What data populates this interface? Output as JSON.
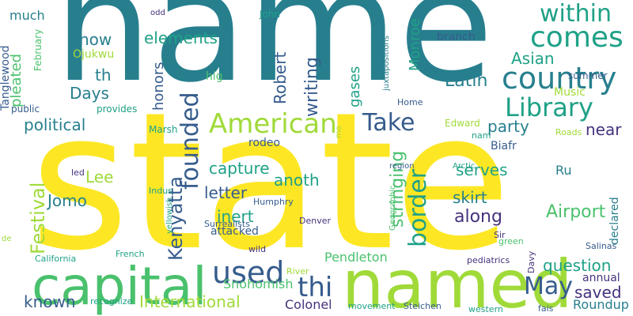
{
  "palette": {
    "background": "#ffffff",
    "yellow": "#fde725",
    "lime": "#a0da39",
    "green": "#4ac16d",
    "teal": "#1fa187",
    "cyan": "#277f8e",
    "blue": "#365c8d",
    "indigo": "#46327e",
    "purple": "#440154"
  },
  "words": [
    {
      "text": "name",
      "color": "cyan"
    },
    {
      "text": "state",
      "color": "yellow"
    },
    {
      "text": "named",
      "color": "lime"
    },
    {
      "text": "capital",
      "color": "green"
    },
    {
      "text": "country",
      "color": "cyan"
    },
    {
      "text": "comes",
      "color": "teal"
    },
    {
      "text": "within",
      "color": "teal"
    },
    {
      "text": "Library",
      "color": "teal"
    },
    {
      "text": "American",
      "color": "lime"
    },
    {
      "text": "Take",
      "color": "blue"
    },
    {
      "text": "founded",
      "color": "blue"
    },
    {
      "text": "border",
      "color": "teal"
    },
    {
      "text": "used",
      "color": "blue"
    },
    {
      "text": "thi",
      "color": "blue"
    },
    {
      "text": "May",
      "color": "blue"
    },
    {
      "text": "Festival",
      "color": "lime"
    },
    {
      "text": "Kenyatta",
      "color": "blue"
    },
    {
      "text": "Airport",
      "color": "green"
    },
    {
      "text": "stringing",
      "color": "green"
    },
    {
      "text": "Robert",
      "color": "blue"
    },
    {
      "text": "writing",
      "color": "blue"
    },
    {
      "text": "Latin",
      "color": "cyan"
    },
    {
      "text": "Asian",
      "color": "teal"
    },
    {
      "text": "Monroe",
      "color": "teal"
    },
    {
      "text": "gases",
      "color": "teal"
    },
    {
      "text": "elements",
      "color": "teal"
    },
    {
      "text": "honors",
      "color": "blue"
    },
    {
      "text": "now",
      "color": "cyan"
    },
    {
      "text": "th",
      "color": "cyan"
    },
    {
      "text": "Days",
      "color": "cyan"
    },
    {
      "text": "political",
      "color": "cyan"
    },
    {
      "text": "party",
      "color": "cyan"
    },
    {
      "text": "near",
      "color": "indigo"
    },
    {
      "text": "capture",
      "color": "teal"
    },
    {
      "text": "anoth",
      "color": "teal"
    },
    {
      "text": "letter",
      "color": "blue"
    },
    {
      "text": "inert",
      "color": "teal"
    },
    {
      "text": "along",
      "color": "indigo"
    },
    {
      "text": "skirt",
      "color": "cyan"
    },
    {
      "text": "serves",
      "color": "teal"
    },
    {
      "text": "Lee",
      "color": "lime"
    },
    {
      "text": "Jomo",
      "color": "cyan"
    },
    {
      "text": "International",
      "color": "lime"
    },
    {
      "text": "question",
      "color": "teal"
    },
    {
      "text": "saved",
      "color": "indigo"
    },
    {
      "text": "known",
      "color": "blue"
    },
    {
      "text": "Snohomish",
      "color": "green"
    },
    {
      "text": "Pendleton",
      "color": "green"
    },
    {
      "text": "Colonel",
      "color": "indigo"
    },
    {
      "text": "Roundup",
      "color": "cyan"
    },
    {
      "text": "annual",
      "color": "indigo"
    },
    {
      "text": "rodeo",
      "color": "blue"
    },
    {
      "text": "Biafr",
      "color": "blue"
    },
    {
      "text": "Ru",
      "color": "cyan"
    },
    {
      "text": "attacked",
      "color": "blue"
    },
    {
      "text": "pleated",
      "color": "green"
    },
    {
      "text": "much",
      "color": "cyan"
    },
    {
      "text": "Ojukwu",
      "color": "lime"
    },
    {
      "text": "hig",
      "color": "green"
    },
    {
      "text": "branch",
      "color": "blue"
    },
    {
      "text": "summer",
      "color": "blue"
    },
    {
      "text": "Music",
      "color": "lime"
    },
    {
      "text": "declared",
      "color": "cyan"
    },
    {
      "text": "Tanglewood",
      "color": "blue"
    },
    {
      "text": "February",
      "color": "green"
    },
    {
      "text": "public",
      "color": "blue"
    },
    {
      "text": "provides",
      "color": "teal"
    },
    {
      "text": "Marsh",
      "color": "teal"
    },
    {
      "text": "Edward",
      "color": "lime"
    },
    {
      "text": "Roads",
      "color": "lime"
    },
    {
      "text": "Home",
      "color": "blue"
    },
    {
      "text": "juxtapositions",
      "color": "cyan"
    },
    {
      "text": "John",
      "color": "teal"
    },
    {
      "text": "odd",
      "color": "indigo"
    },
    {
      "text": "mo",
      "color": "lime"
    },
    {
      "text": "nam",
      "color": "teal"
    },
    {
      "text": "Arctic",
      "color": "teal"
    },
    {
      "text": "Indus",
      "color": "teal"
    },
    {
      "text": "Humphry",
      "color": "blue"
    },
    {
      "text": "Surrealists",
      "color": "blue"
    },
    {
      "text": "yellowish",
      "color": "teal"
    },
    {
      "text": "led",
      "color": "indigo"
    },
    {
      "text": "region",
      "color": "blue"
    },
    {
      "text": "Geographic",
      "color": "green"
    },
    {
      "text": "Denver",
      "color": "indigo"
    },
    {
      "text": "Sir",
      "color": "indigo"
    },
    {
      "text": "green",
      "color": "green"
    },
    {
      "text": "Salinas",
      "color": "blue"
    },
    {
      "text": "Davy",
      "color": "indigo"
    },
    {
      "text": "de",
      "color": "lime"
    },
    {
      "text": "California",
      "color": "teal"
    },
    {
      "text": "French",
      "color": "teal"
    },
    {
      "text": "wild",
      "color": "indigo"
    },
    {
      "text": "River",
      "color": "lime"
    },
    {
      "text": "pediatrics",
      "color": "indigo"
    },
    {
      "text": "recognize",
      "color": "teal"
    },
    {
      "text": "movement",
      "color": "teal"
    },
    {
      "text": "Steichen",
      "color": "blue"
    },
    {
      "text": "western",
      "color": "teal"
    },
    {
      "text": "fais",
      "color": "blue"
    }
  ]
}
